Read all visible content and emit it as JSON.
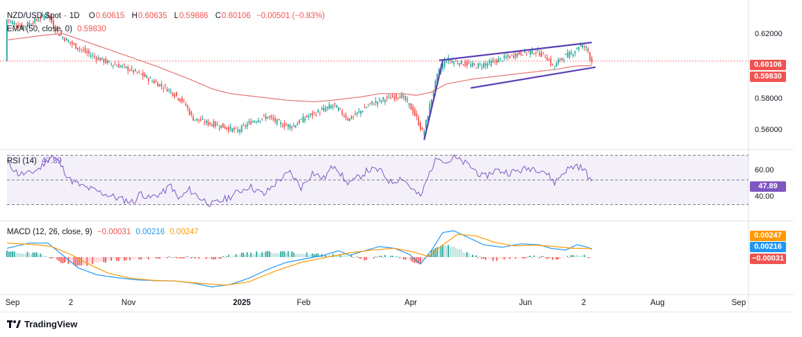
{
  "symbol": {
    "name": "NZD/USD Spot",
    "timeframe": "1D",
    "open_label": "O",
    "open": "0.60615",
    "high_label": "H",
    "high": "0.60635",
    "low_label": "L",
    "low": "0.59886",
    "close_label": "C",
    "close": "0.60106",
    "change": "−0.00501 (−0.83%)"
  },
  "ema": {
    "label": "EMA (50, close, 0)",
    "value": "0.59830"
  },
  "rsi": {
    "label": "RSI (14)",
    "value": "47.89"
  },
  "macd": {
    "label": "MACD (12, 26, close, 9)",
    "hist": "−0.00031",
    "macd": "0.00216",
    "signal": "0.00247"
  },
  "brand": "TradingView",
  "colors": {
    "up": "#26a69a",
    "down": "#ef5350",
    "ema": "#e57373",
    "rsi": "#7e57c2",
    "macd": "#2196f3",
    "signal": "#ff9800",
    "channel": "#5b3fb5"
  },
  "chart_data": [
    {
      "type": "candlestick",
      "title": "NZD/USD Spot · 1D",
      "x_ticks": [
        "Sep",
        "2",
        "Nov",
        "2025",
        "Feb",
        "Apr",
        "Jun",
        "2",
        "Aug",
        "Sep"
      ],
      "y_ticks": [
        "0.62000",
        "0.58000",
        "0.56000"
      ],
      "ylim": [
        0.548,
        0.6335
      ],
      "last_price": "0.60106",
      "price_path": [
        [
          0,
          0.627
        ],
        [
          8,
          0.622
        ],
        [
          16,
          0.626
        ],
        [
          22,
          0.63
        ],
        [
          28,
          0.618
        ],
        [
          36,
          0.611
        ],
        [
          45,
          0.605
        ],
        [
          55,
          0.6
        ],
        [
          64,
          0.597
        ],
        [
          72,
          0.593
        ],
        [
          80,
          0.588
        ],
        [
          88,
          0.583
        ],
        [
          96,
          0.575
        ],
        [
          100,
          0.566
        ],
        [
          108,
          0.563
        ],
        [
          116,
          0.561
        ],
        [
          124,
          0.558
        ],
        [
          132,
          0.564
        ],
        [
          140,
          0.567
        ],
        [
          148,
          0.562
        ],
        [
          154,
          0.561
        ],
        [
          160,
          0.566
        ],
        [
          168,
          0.57
        ],
        [
          176,
          0.574
        ],
        [
          184,
          0.565
        ],
        [
          190,
          0.57
        ],
        [
          196,
          0.575
        ],
        [
          204,
          0.578
        ],
        [
          212,
          0.58
        ],
        [
          216,
          0.575
        ],
        [
          220,
          0.567
        ],
        [
          224,
          0.556
        ],
        [
          228,
          0.576
        ],
        [
          232,
          0.594
        ],
        [
          236,
          0.602
        ],
        [
          244,
          0.6
        ],
        [
          252,
          0.598
        ],
        [
          260,
          0.6
        ],
        [
          268,
          0.603
        ],
        [
          276,
          0.606
        ],
        [
          284,
          0.607
        ],
        [
          290,
          0.604
        ],
        [
          294,
          0.597
        ],
        [
          298,
          0.603
        ],
        [
          304,
          0.606
        ],
        [
          308,
          0.611
        ],
        [
          312,
          0.609
        ],
        [
          314,
          0.601
        ]
      ],
      "ema_path": [
        [
          0,
          0.614
        ],
        [
          20,
          0.617
        ],
        [
          30,
          0.618
        ],
        [
          40,
          0.614
        ],
        [
          60,
          0.606
        ],
        [
          80,
          0.598
        ],
        [
          100,
          0.589
        ],
        [
          110,
          0.584
        ],
        [
          120,
          0.581
        ],
        [
          135,
          0.579
        ],
        [
          150,
          0.577
        ],
        [
          165,
          0.576
        ],
        [
          175,
          0.577
        ],
        [
          190,
          0.579
        ],
        [
          200,
          0.581
        ],
        [
          212,
          0.581
        ],
        [
          220,
          0.58
        ],
        [
          228,
          0.582
        ],
        [
          236,
          0.587
        ],
        [
          250,
          0.59
        ],
        [
          265,
          0.592
        ],
        [
          280,
          0.594
        ],
        [
          295,
          0.596
        ],
        [
          305,
          0.598
        ],
        [
          314,
          0.5983
        ]
      ],
      "channel_upper": [
        [
          232,
          0.6015
        ],
        [
          314,
          0.6125
        ]
      ],
      "channel_lower": [
        [
          249,
          0.5845
        ],
        [
          316,
          0.5973
        ]
      ],
      "channel_left_leg": [
        [
          224,
          0.5525
        ],
        [
          234,
          0.6015
        ]
      ]
    },
    {
      "type": "line",
      "title": "RSI (14)",
      "y_ticks": [
        "60.00",
        "40.00"
      ],
      "ylim": [
        28,
        72
      ],
      "levels": [
        70,
        50,
        30
      ],
      "last": "47.89",
      "path": [
        [
          0,
          65
        ],
        [
          6,
          55
        ],
        [
          12,
          55
        ],
        [
          18,
          60
        ],
        [
          24,
          70
        ],
        [
          28,
          64
        ],
        [
          34,
          50
        ],
        [
          40,
          45
        ],
        [
          50,
          40
        ],
        [
          60,
          35
        ],
        [
          68,
          32
        ],
        [
          72,
          40
        ],
        [
          76,
          35
        ],
        [
          84,
          40
        ],
        [
          88,
          46
        ],
        [
          92,
          34
        ],
        [
          98,
          42
        ],
        [
          104,
          35
        ],
        [
          110,
          30
        ],
        [
          118,
          35
        ],
        [
          124,
          40
        ],
        [
          130,
          45
        ],
        [
          138,
          38
        ],
        [
          146,
          50
        ],
        [
          152,
          56
        ],
        [
          158,
          44
        ],
        [
          164,
          56
        ],
        [
          170,
          51
        ],
        [
          176,
          63
        ],
        [
          182,
          48
        ],
        [
          186,
          49
        ],
        [
          194,
          58
        ],
        [
          200,
          58
        ],
        [
          206,
          48
        ],
        [
          212,
          52
        ],
        [
          218,
          42
        ],
        [
          222,
          36
        ],
        [
          228,
          60
        ],
        [
          232,
          70
        ],
        [
          236,
          64
        ],
        [
          240,
          68
        ],
        [
          248,
          62
        ],
        [
          256,
          52
        ],
        [
          262,
          58
        ],
        [
          270,
          56
        ],
        [
          276,
          58
        ],
        [
          282,
          60
        ],
        [
          288,
          58
        ],
        [
          294,
          48
        ],
        [
          300,
          58
        ],
        [
          306,
          62
        ],
        [
          310,
          58
        ],
        [
          314,
          49
        ]
      ]
    },
    {
      "type": "macd",
      "title": "MACD (12, 26, close, 9)",
      "macd_path": [
        [
          0,
          0.0025
        ],
        [
          12,
          0.004
        ],
        [
          22,
          0.004
        ],
        [
          30,
          0.0005
        ],
        [
          38,
          -0.003
        ],
        [
          48,
          -0.005
        ],
        [
          58,
          -0.0058
        ],
        [
          70,
          -0.0065
        ],
        [
          80,
          -0.0067
        ],
        [
          90,
          -0.0068
        ],
        [
          100,
          -0.0074
        ],
        [
          110,
          -0.0085
        ],
        [
          120,
          -0.0078
        ],
        [
          130,
          -0.006
        ],
        [
          140,
          -0.0035
        ],
        [
          150,
          -0.0015
        ],
        [
          160,
          -0.0005
        ],
        [
          170,
          0.0005
        ],
        [
          178,
          0.0018
        ],
        [
          184,
          0.0005
        ],
        [
          190,
          0.0015
        ],
        [
          200,
          0.003
        ],
        [
          208,
          0.0025
        ],
        [
          216,
          0.0008
        ],
        [
          222,
          -0.002
        ],
        [
          228,
          0.002
        ],
        [
          234,
          0.007
        ],
        [
          240,
          0.0075
        ],
        [
          248,
          0.0055
        ],
        [
          256,
          0.0035
        ],
        [
          266,
          0.0028
        ],
        [
          276,
          0.0038
        ],
        [
          286,
          0.0035
        ],
        [
          292,
          0.0025
        ],
        [
          300,
          0.002
        ],
        [
          306,
          0.0035
        ],
        [
          312,
          0.0028
        ],
        [
          314,
          0.00216
        ]
      ],
      "signal_path": [
        [
          0,
          0.004
        ],
        [
          14,
          0.0036
        ],
        [
          24,
          0.003
        ],
        [
          34,
          0.0008
        ],
        [
          44,
          -0.002
        ],
        [
          54,
          -0.0045
        ],
        [
          66,
          -0.006
        ],
        [
          78,
          -0.0066
        ],
        [
          90,
          -0.0068
        ],
        [
          104,
          -0.0075
        ],
        [
          118,
          -0.008
        ],
        [
          130,
          -0.007
        ],
        [
          144,
          -0.004
        ],
        [
          158,
          -0.0015
        ],
        [
          172,
          0
        ],
        [
          184,
          0.0012
        ],
        [
          196,
          0.002
        ],
        [
          208,
          0.0025
        ],
        [
          218,
          0.0015
        ],
        [
          226,
          0.0002
        ],
        [
          234,
          0.0035
        ],
        [
          242,
          0.0065
        ],
        [
          252,
          0.006
        ],
        [
          262,
          0.0042
        ],
        [
          272,
          0.0032
        ],
        [
          284,
          0.0034
        ],
        [
          294,
          0.003
        ],
        [
          304,
          0.0025
        ],
        [
          314,
          0.00247
        ]
      ],
      "hist_path": [
        [
          0,
          0.0015
        ],
        [
          20,
          0.0008
        ],
        [
          30,
          -0.0015
        ],
        [
          40,
          -0.0025
        ],
        [
          55,
          -0.001
        ],
        [
          70,
          -0.0005
        ],
        [
          90,
          0
        ],
        [
          110,
          -0.0005
        ],
        [
          125,
          0.0008
        ],
        [
          140,
          0.0015
        ],
        [
          155,
          0.0012
        ],
        [
          170,
          0.0006
        ],
        [
          180,
          0.0008
        ],
        [
          192,
          -0.0006
        ],
        [
          204,
          0.0004
        ],
        [
          216,
          -0.0008
        ],
        [
          222,
          -0.0022
        ],
        [
          228,
          0.0018
        ],
        [
          234,
          0.0035
        ],
        [
          240,
          0.003
        ],
        [
          250,
          0.0004
        ],
        [
          260,
          -0.0008
        ],
        [
          272,
          -0.0004
        ],
        [
          284,
          0.0002
        ],
        [
          296,
          -0.0007
        ],
        [
          306,
          0.0009
        ],
        [
          314,
          -0.00031
        ]
      ],
      "ylim": [
        -0.0095,
        0.0095
      ]
    }
  ]
}
